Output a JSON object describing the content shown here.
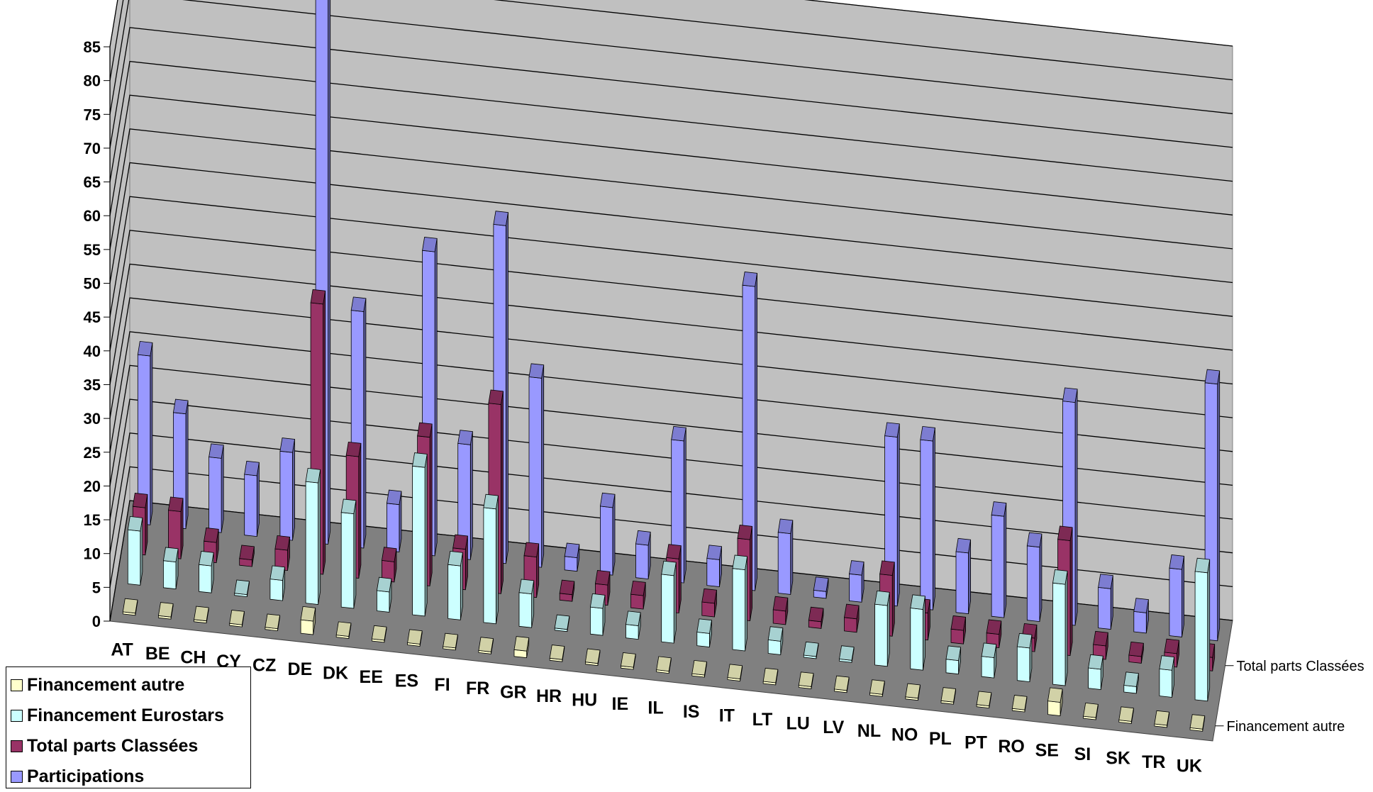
{
  "chart_data": {
    "type": "bar",
    "categories": [
      "AT",
      "BE",
      "CH",
      "CY",
      "CZ",
      "DE",
      "DK",
      "EE",
      "ES",
      "FI",
      "FR",
      "GR",
      "HR",
      "HU",
      "IE",
      "IL",
      "IS",
      "IT",
      "LT",
      "LU",
      "LV",
      "NL",
      "NO",
      "PL",
      "PT",
      "RO",
      "SE",
      "SI",
      "SK",
      "TR",
      "UK"
    ],
    "series": [
      {
        "name": "Financement autre",
        "color": "#FFFFCC",
        "values": [
          0,
          0,
          0,
          0,
          0,
          2,
          0,
          0,
          0,
          0,
          0,
          1,
          0,
          0,
          0,
          0,
          0,
          0,
          0,
          0,
          0,
          0,
          0,
          0,
          0,
          0,
          2,
          0,
          0,
          0,
          0
        ]
      },
      {
        "name": "Financement Eurostars",
        "color": "#CCFFFF",
        "values": [
          8,
          4,
          4,
          0,
          3,
          18,
          14,
          3,
          22,
          8,
          17,
          5,
          0,
          4,
          2,
          10,
          2,
          12,
          2,
          0,
          0,
          9,
          9,
          2,
          3,
          5,
          15,
          3,
          1,
          4,
          19
        ]
      },
      {
        "name": "Total parts Classées",
        "color": "#993366",
        "values": [
          7,
          7,
          3,
          1,
          3,
          40,
          18,
          3,
          22,
          6,
          28,
          6,
          1,
          3,
          2,
          8,
          2,
          12,
          2,
          1,
          2,
          9,
          4,
          2,
          2,
          2,
          17,
          2,
          1,
          2,
          2
        ]
      },
      {
        "name": "Participations",
        "color": "#9999FF",
        "values": [
          25,
          17,
          11,
          9,
          13,
          83,
          35,
          7,
          45,
          17,
          50,
          28,
          2,
          10,
          5,
          21,
          4,
          45,
          9,
          1,
          4,
          25,
          25,
          9,
          15,
          11,
          33,
          6,
          3,
          10,
          38
        ]
      }
    ],
    "title": "",
    "xlabel": "",
    "ylabel": "",
    "ylim": [
      0,
      85
    ],
    "yticks": [
      "0",
      "5",
      "10",
      "15",
      "20",
      "25",
      "30",
      "35",
      "40",
      "45",
      "50",
      "55",
      "60",
      "65",
      "70",
      "75",
      "80",
      "85"
    ],
    "depth_axis_labels": [
      "Total parts Classées",
      "Financement autre"
    ],
    "grid": true,
    "legend": "bottom-left",
    "style": "3d-column"
  }
}
